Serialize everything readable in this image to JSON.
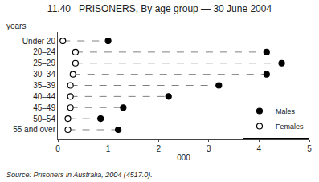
{
  "chart_data": {
    "type": "dot",
    "orientation": "horizontal",
    "title": "11.40   PRISONERS, By age group — 30 June 2004",
    "xlabel": "000",
    "ylabel": "years",
    "source": "Source: Prisoners in Australia, 2004 (4517.0).",
    "categories": [
      "Under 20",
      "20–24",
      "25–29",
      "30–34",
      "35–39",
      "40–44",
      "45–49",
      "50–54",
      "55 and over"
    ],
    "series": [
      {
        "name": "Males",
        "color": "#000000",
        "marker": "filled",
        "values": [
          1.0,
          4.15,
          4.45,
          4.15,
          3.2,
          2.2,
          1.3,
          0.85,
          1.2
        ]
      },
      {
        "name": "Females",
        "color": "#000000",
        "marker": "open",
        "values": [
          0.1,
          0.35,
          0.35,
          0.3,
          0.25,
          0.25,
          0.25,
          0.2,
          0.2
        ]
      }
    ],
    "xlim": [
      0,
      5
    ],
    "xticks": [
      0,
      1,
      2,
      3,
      4,
      5
    ],
    "grid": false,
    "legend": "lower right"
  }
}
